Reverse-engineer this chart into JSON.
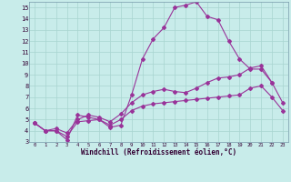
{
  "xlabel": "Windchill (Refroidissement éolien,°C)",
  "xlim": [
    -0.5,
    23.5
  ],
  "ylim": [
    3,
    15.5
  ],
  "xticks": [
    0,
    1,
    2,
    3,
    4,
    5,
    6,
    7,
    8,
    9,
    10,
    11,
    12,
    13,
    14,
    15,
    16,
    17,
    18,
    19,
    20,
    21,
    22,
    23
  ],
  "yticks": [
    3,
    4,
    5,
    6,
    7,
    8,
    9,
    10,
    11,
    12,
    13,
    14,
    15
  ],
  "bg_color": "#c8ecea",
  "grid_color": "#a8d4d0",
  "line_color": "#993399",
  "line1_x": [
    0,
    1,
    2,
    3,
    4,
    5,
    6,
    7,
    8,
    9,
    10,
    11,
    12,
    13,
    14,
    15,
    16,
    17,
    18,
    19,
    20,
    21,
    22
  ],
  "line1_y": [
    4.7,
    4.0,
    4.0,
    3.2,
    5.4,
    5.2,
    5.0,
    4.3,
    4.5,
    7.2,
    10.4,
    12.2,
    13.2,
    15.0,
    15.2,
    15.5,
    14.2,
    13.9,
    12.0,
    10.4,
    9.5,
    9.5,
    8.3
  ],
  "line2_x": [
    0,
    1,
    2,
    3,
    4,
    5,
    6,
    7,
    8,
    9,
    10,
    11,
    12,
    13,
    14,
    15,
    16,
    17,
    18,
    19,
    20,
    21,
    22,
    23
  ],
  "line2_y": [
    4.7,
    4.0,
    4.2,
    3.8,
    5.0,
    5.4,
    5.2,
    4.8,
    5.5,
    6.5,
    7.2,
    7.5,
    7.7,
    7.5,
    7.4,
    7.8,
    8.3,
    8.7,
    8.8,
    9.0,
    9.6,
    9.8,
    8.3,
    6.5
  ],
  "line3_x": [
    0,
    1,
    2,
    3,
    4,
    5,
    6,
    7,
    8,
    9,
    10,
    11,
    12,
    13,
    14,
    15,
    16,
    17,
    18,
    19,
    20,
    21,
    22,
    23
  ],
  "line3_y": [
    4.7,
    4.0,
    4.0,
    3.5,
    4.8,
    4.9,
    5.0,
    4.5,
    5.0,
    5.8,
    6.2,
    6.4,
    6.5,
    6.6,
    6.7,
    6.8,
    6.9,
    7.0,
    7.1,
    7.2,
    7.8,
    8.0,
    7.0,
    5.8
  ]
}
